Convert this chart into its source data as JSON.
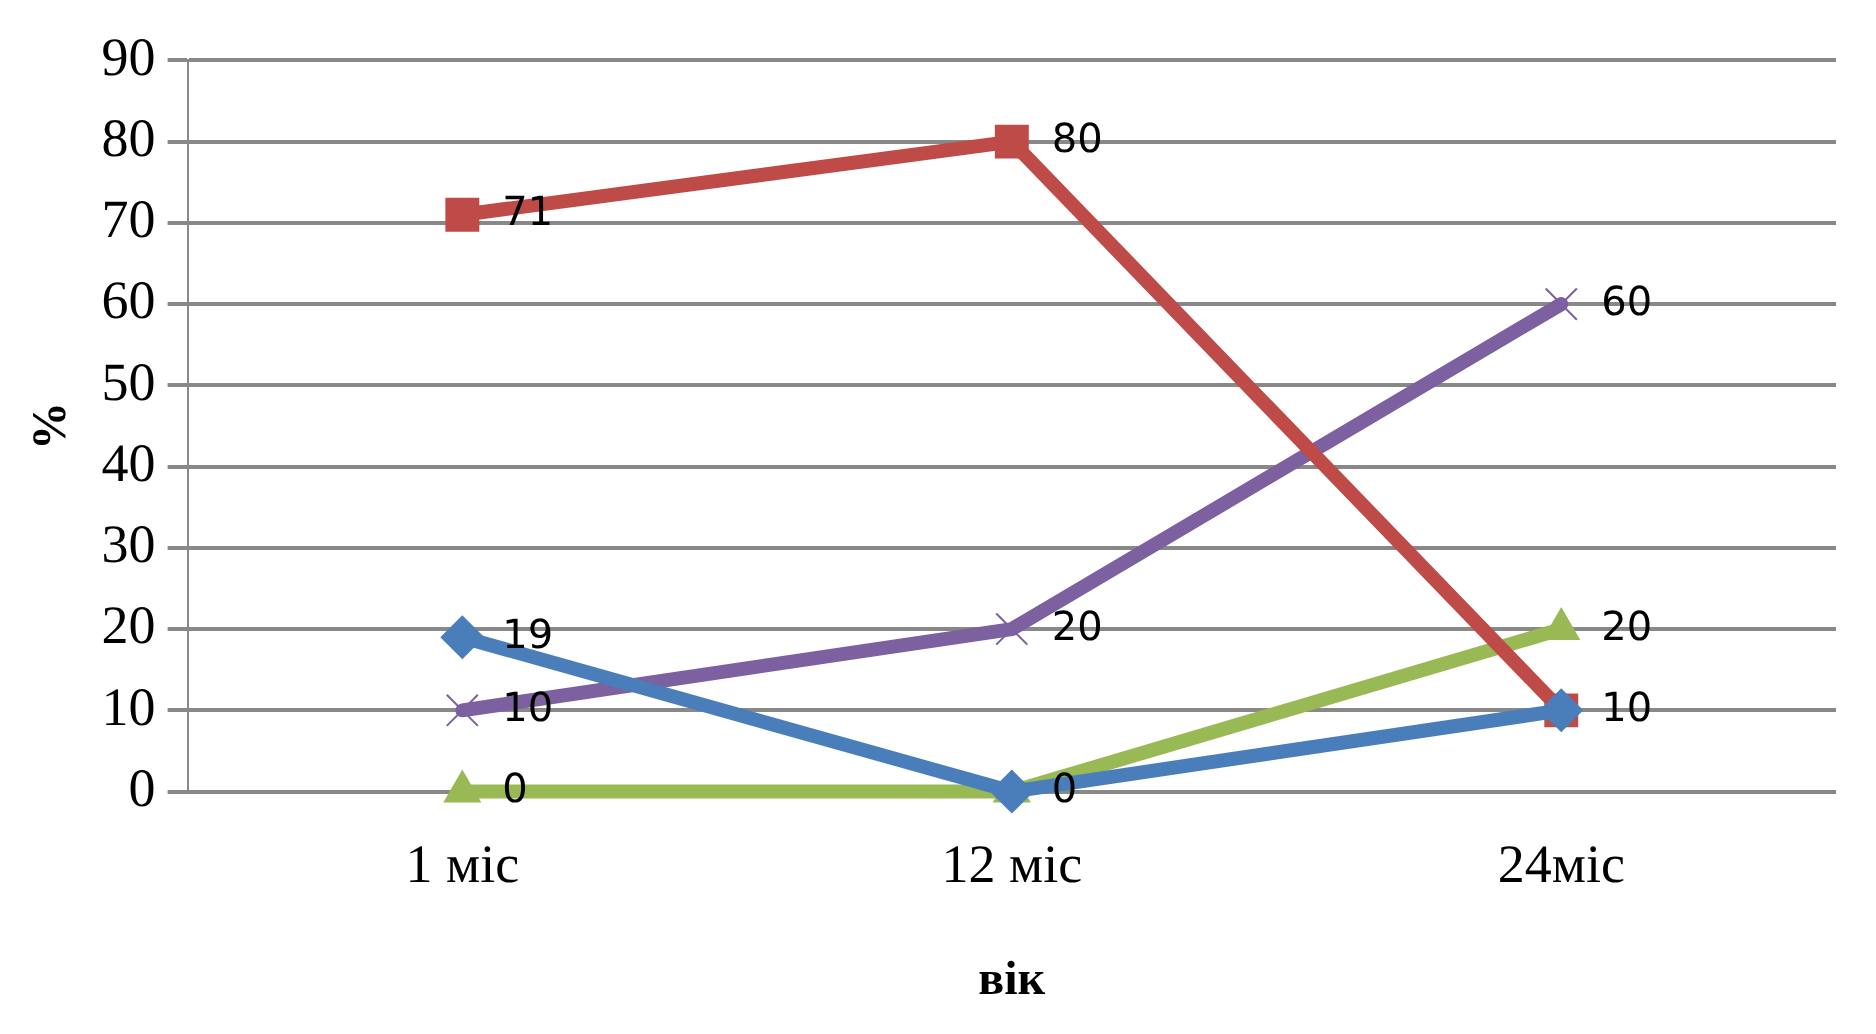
{
  "chart_data": {
    "type": "line",
    "xlabel": "вік",
    "ylabel": "%",
    "categories": [
      "1 міс",
      "12 міс",
      "24міс"
    ],
    "series": [
      {
        "color": "#4a7ebb",
        "marker": "diamond",
        "values": [
          19,
          0,
          10
        ],
        "value_labels": [
          "19",
          null,
          null
        ]
      },
      {
        "color": "#be4b48",
        "marker": "square",
        "values": [
          71,
          80,
          10
        ],
        "value_labels": [
          "71",
          "80",
          "10"
        ]
      },
      {
        "color": "#98b954",
        "marker": "triangle",
        "values": [
          0,
          0,
          20
        ],
        "value_labels": [
          "0",
          "0",
          "20"
        ]
      },
      {
        "color": "#7d60a0",
        "marker": "cross",
        "values": [
          10,
          20,
          60
        ],
        "value_labels": [
          "10",
          "20",
          "60"
        ]
      }
    ],
    "ylim": [
      0,
      90
    ],
    "yticks": [
      0,
      10,
      20,
      30,
      40,
      50,
      60,
      70,
      80,
      90
    ],
    "grid": "y",
    "legend": false
  }
}
